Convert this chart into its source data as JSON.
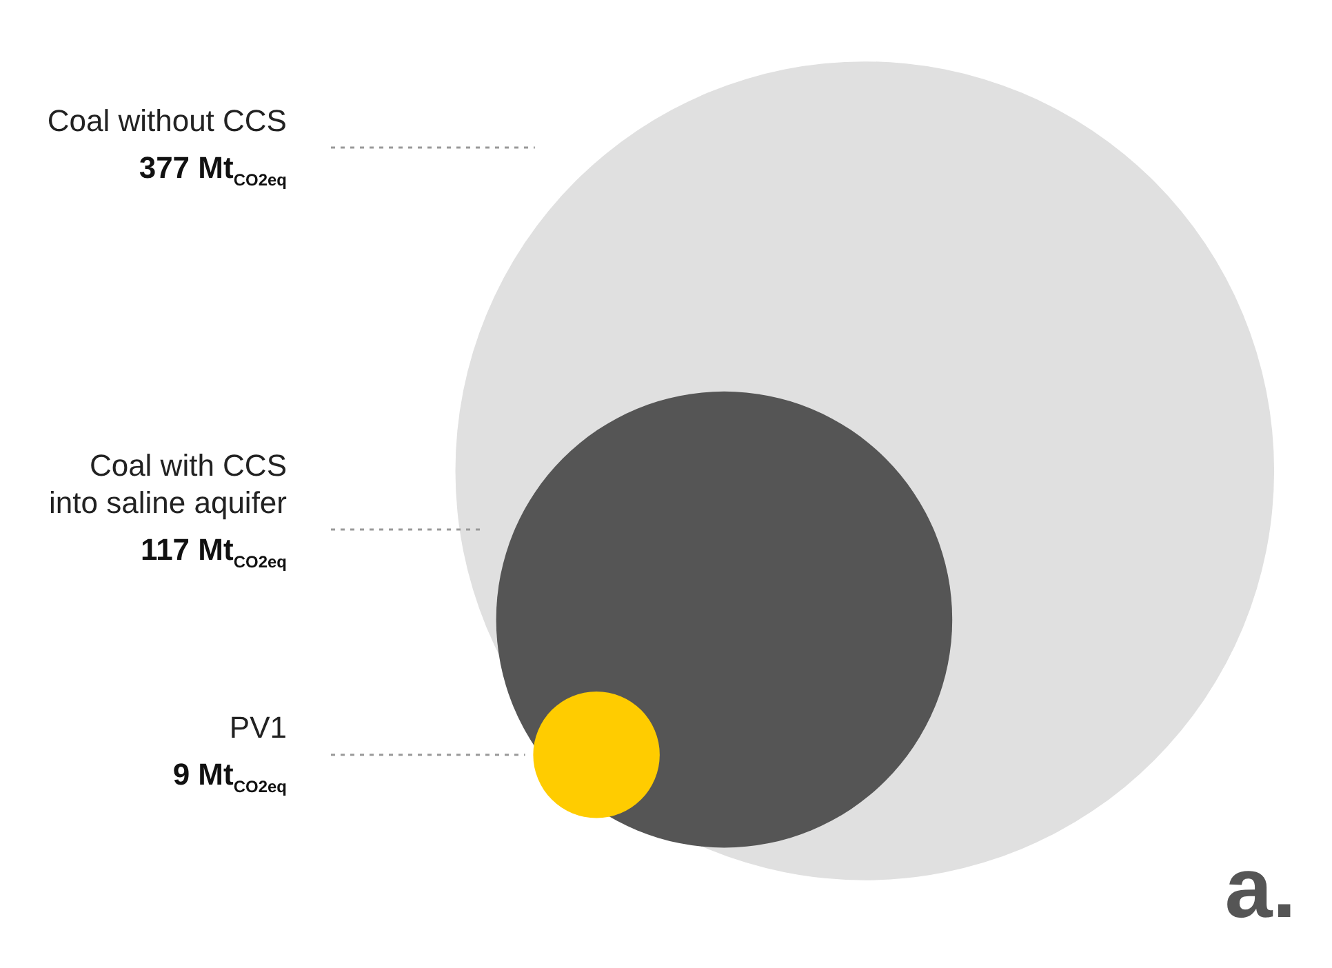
{
  "chart_data": {
    "type": "other",
    "categories": [
      "Coal without CCS",
      "Coal with CCS\ninto saline aquifer",
      "PV1"
    ],
    "values": [
      377,
      117,
      9
    ],
    "colors": [
      "#e0e0e0",
      "#555555",
      "#ffcc00"
    ],
    "value_labels": [
      "377 Mt$_{CO2eq}$",
      "117 Mt$_{CO2eq}$",
      "9 Mt$_{CO2eq}$"
    ],
    "annotations": [
      "a."
    ]
  }
}
